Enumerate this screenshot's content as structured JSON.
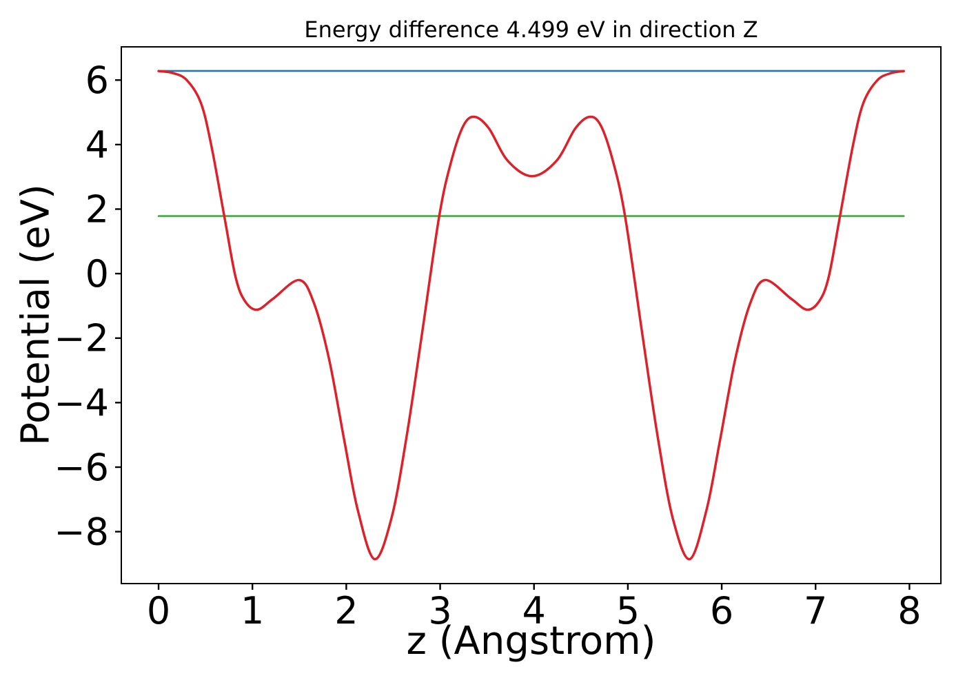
{
  "figure": {
    "title": "Energy difference 4.499 eV in direction Z",
    "xlabel": "z (Angstrom)",
    "ylabel": "Potential (eV)"
  },
  "chart_data": {
    "type": "line",
    "title": "Energy difference 4.499 eV in direction Z",
    "xlabel": "z (Angstrom)",
    "ylabel": "Potential (eV)",
    "direction": "Z",
    "energy_difference_eV": 4.499,
    "xlim": [
      -0.397,
      8.335
    ],
    "ylim": [
      -9.61,
      7.03
    ],
    "xticks": [
      0,
      1,
      2,
      3,
      4,
      5,
      6,
      7,
      8
    ],
    "yticks": [
      6,
      4,
      2,
      0,
      -2,
      -4,
      -6,
      -8
    ],
    "grid": false,
    "legend_position": "none",
    "series": [
      {
        "name": "blue-hline",
        "type": "hline",
        "color": "#1f77b4",
        "width": 2.6,
        "y": 6.283,
        "x_range": [
          0.0,
          7.94
        ]
      },
      {
        "name": "green-hline",
        "type": "hline",
        "color": "#42a942",
        "width": 2.6,
        "y": 1.784,
        "x_range": [
          0.0,
          7.94
        ]
      },
      {
        "name": "potential-curve",
        "type": "curve",
        "color": "#e02028",
        "width": 3.5,
        "points": [
          [
            0.0,
            6.28
          ],
          [
            0.15,
            6.22
          ],
          [
            0.3,
            6.0
          ],
          [
            0.45,
            5.3
          ],
          [
            0.56,
            4.0
          ],
          [
            0.7,
            1.78
          ],
          [
            0.82,
            -0.1
          ],
          [
            0.92,
            -0.85
          ],
          [
            1.05,
            -1.12
          ],
          [
            1.22,
            -0.78
          ],
          [
            1.5,
            -0.2
          ],
          [
            1.66,
            -0.95
          ],
          [
            1.82,
            -2.7
          ],
          [
            1.98,
            -5.2
          ],
          [
            2.12,
            -7.3
          ],
          [
            2.3,
            -8.85
          ],
          [
            2.48,
            -7.6
          ],
          [
            2.64,
            -5.1
          ],
          [
            2.8,
            -2.0
          ],
          [
            2.99,
            1.78
          ],
          [
            3.12,
            3.5
          ],
          [
            3.25,
            4.6
          ],
          [
            3.37,
            4.86
          ],
          [
            3.52,
            4.5
          ],
          [
            3.72,
            3.5
          ],
          [
            3.98,
            3.02
          ],
          [
            4.24,
            3.5
          ],
          [
            4.44,
            4.5
          ],
          [
            4.59,
            4.86
          ],
          [
            4.71,
            4.6
          ],
          [
            4.84,
            3.5
          ],
          [
            4.97,
            1.78
          ],
          [
            5.16,
            -2.0
          ],
          [
            5.32,
            -5.1
          ],
          [
            5.48,
            -7.6
          ],
          [
            5.66,
            -8.85
          ],
          [
            5.84,
            -7.3
          ],
          [
            5.98,
            -5.2
          ],
          [
            6.14,
            -2.7
          ],
          [
            6.3,
            -0.95
          ],
          [
            6.46,
            -0.2
          ],
          [
            6.74,
            -0.78
          ],
          [
            6.91,
            -1.12
          ],
          [
            7.04,
            -0.85
          ],
          [
            7.14,
            -0.1
          ],
          [
            7.26,
            1.78
          ],
          [
            7.4,
            4.0
          ],
          [
            7.51,
            5.3
          ],
          [
            7.66,
            6.0
          ],
          [
            7.81,
            6.22
          ],
          [
            7.94,
            6.28
          ]
        ]
      }
    ]
  }
}
